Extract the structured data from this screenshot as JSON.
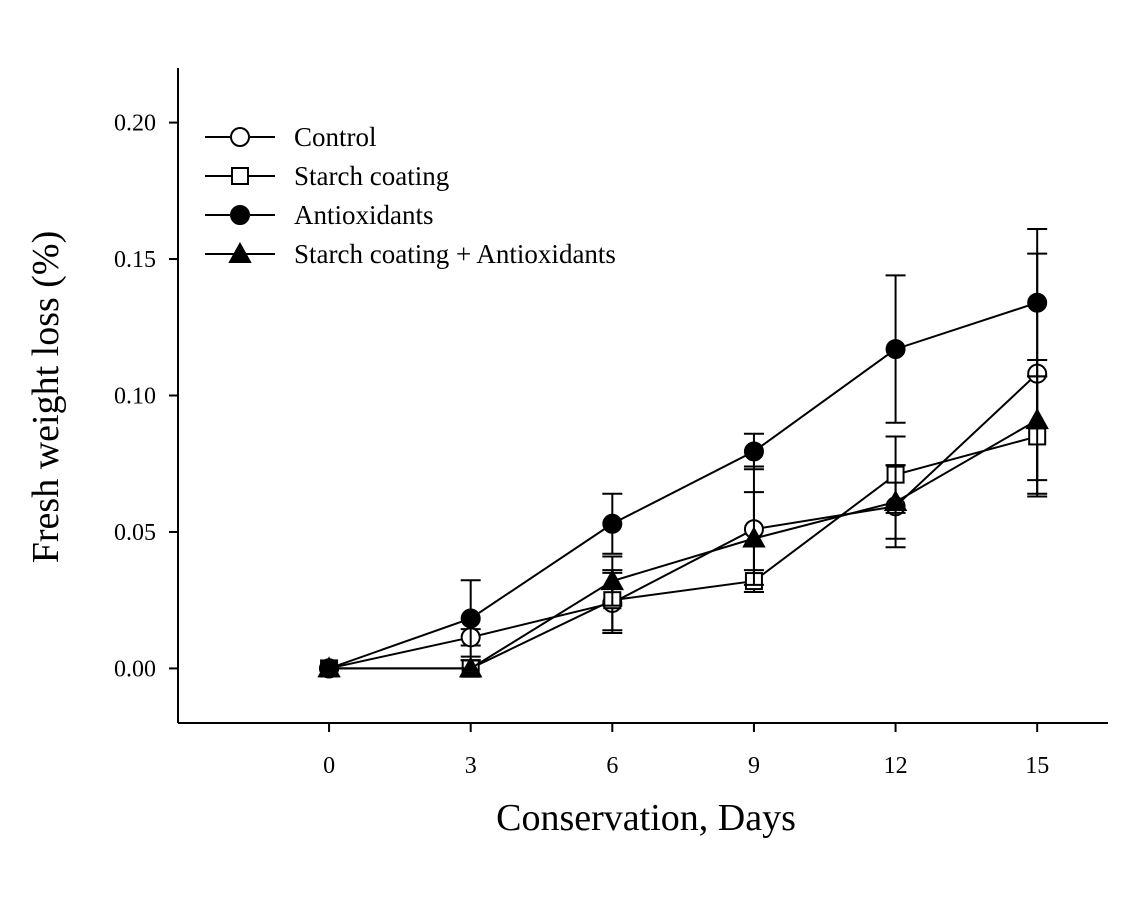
{
  "chart_data": {
    "type": "line",
    "title": "",
    "xlabel": "Conservation, Days",
    "ylabel": "Fresh weight loss (%)",
    "xlim": [
      -3.2,
      16.5
    ],
    "ylim": [
      -0.02,
      0.22
    ],
    "x": [
      0,
      3,
      6,
      9,
      12,
      15
    ],
    "xticks": [
      "0",
      "3",
      "6",
      "9",
      "12",
      "15"
    ],
    "yticks": [
      "0.00",
      "0.05",
      "0.10",
      "0.15",
      "0.20"
    ],
    "grid": false,
    "legend_position": "top-left",
    "series": [
      {
        "name": "Control",
        "marker": "open-circle",
        "values": [
          0,
          0.0114,
          0.024,
          0.051,
          0.0594,
          0.108
        ],
        "errors": [
          0,
          0.003,
          0.011,
          0.023,
          0.015,
          0.044
        ]
      },
      {
        "name": "Starch coating",
        "marker": "open-square",
        "values": [
          0,
          0,
          0.025,
          0.032,
          0.071,
          0.085
        ],
        "errors": [
          0,
          0.003,
          0.011,
          0.004,
          0.014,
          0.022
        ]
      },
      {
        "name": "Antioxidants",
        "marker": "filled-circle",
        "values": [
          0,
          0.0183,
          0.053,
          0.0795,
          0.117,
          0.134
        ],
        "errors": [
          0,
          0.014,
          0.011,
          0.0065,
          0.027,
          0.027
        ]
      },
      {
        "name": "Starch coating + Antioxidants",
        "marker": "filled-triangle",
        "values": [
          0,
          0,
          0.032,
          0.0476,
          0.061,
          0.091
        ],
        "errors": [
          0,
          0.003,
          0.009,
          0.017,
          0.0135,
          0.022
        ]
      }
    ]
  }
}
